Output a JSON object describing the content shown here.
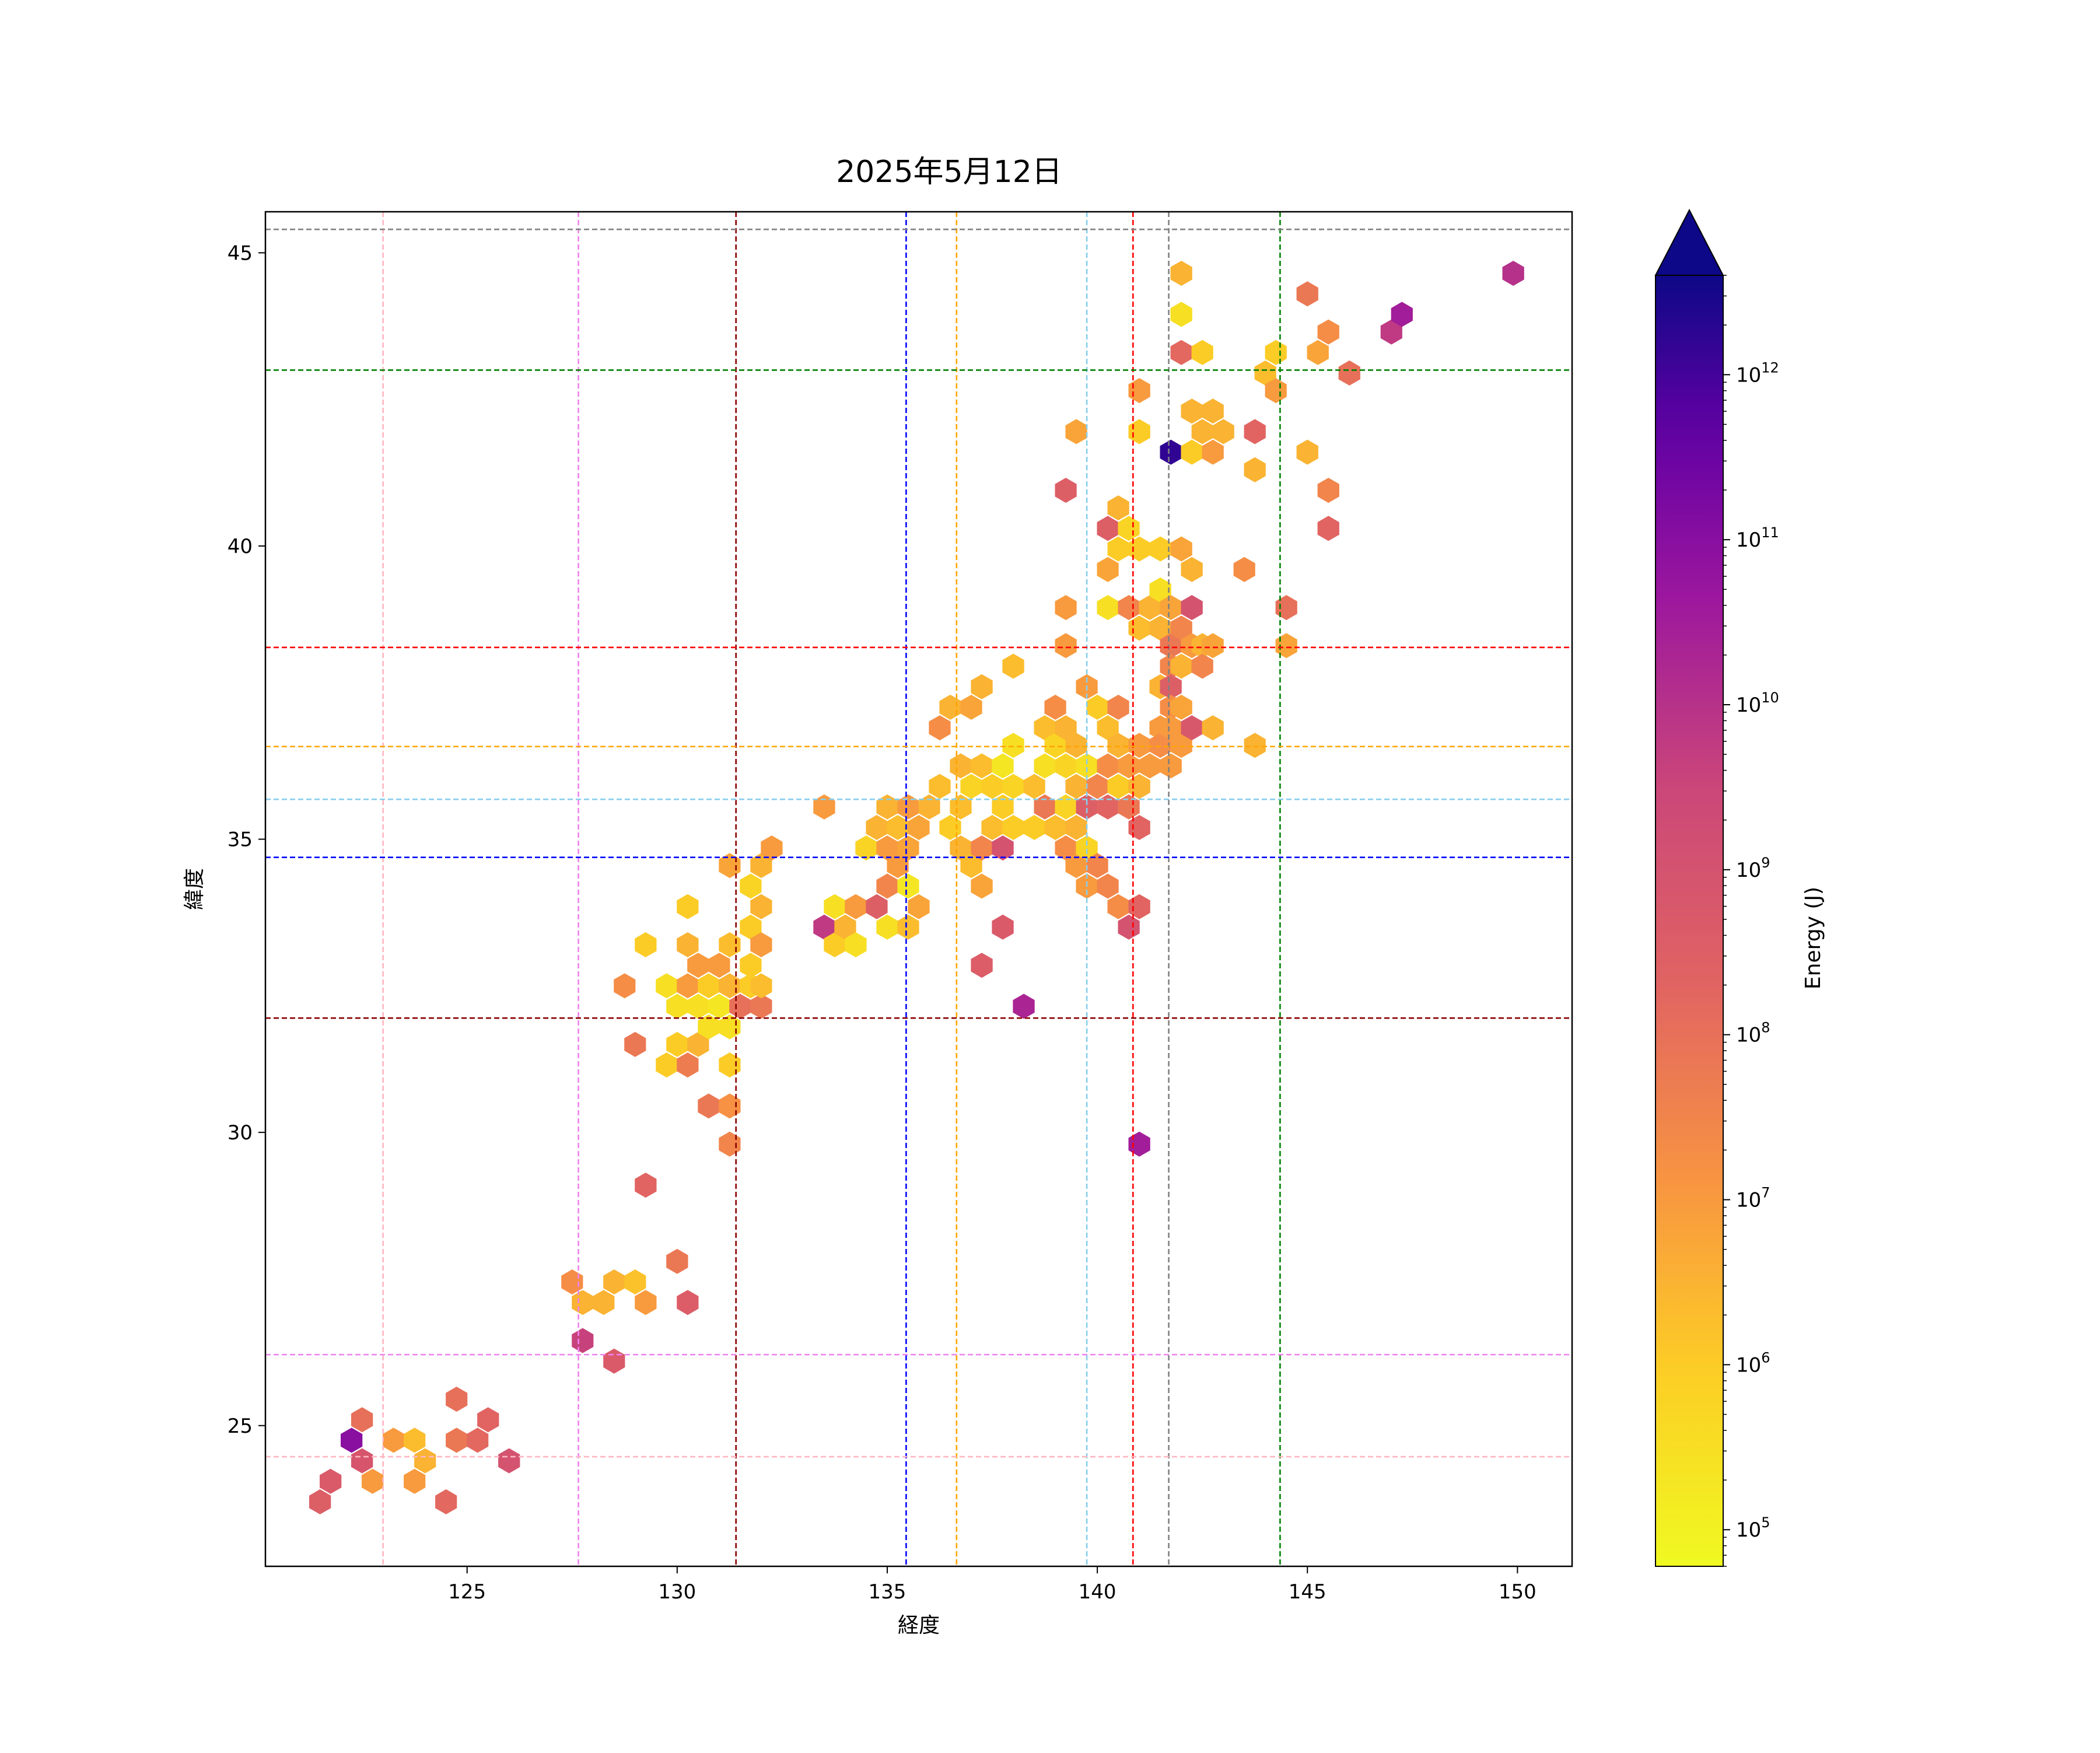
{
  "chart_data": {
    "type": "hexbin",
    "title": "2025年5月12日",
    "xlabel": "経度",
    "ylabel": "緯度",
    "xlim": [
      120.2,
      151.3
    ],
    "ylim": [
      22.6,
      45.7
    ],
    "xticks": [
      125,
      130,
      135,
      140,
      145,
      150
    ],
    "yticks": [
      25,
      30,
      35,
      40,
      45
    ],
    "grid": false,
    "colorbar": {
      "label": "Energy (J)",
      "scale": "log",
      "range": [
        60000,
        4000000000000
      ],
      "ticks": [
        {
          "value": 100000,
          "base": "10",
          "exp": "5"
        },
        {
          "value": 1000000,
          "base": "10",
          "exp": "6"
        },
        {
          "value": 10000000,
          "base": "10",
          "exp": "7"
        },
        {
          "value": 100000000,
          "base": "10",
          "exp": "8"
        },
        {
          "value": 1000000000,
          "base": "10",
          "exp": "9"
        },
        {
          "value": 10000000000,
          "base": "10",
          "exp": "10"
        },
        {
          "value": 100000000000,
          "base": "10",
          "exp": "11"
        },
        {
          "value": 1000000000000,
          "base": "10",
          "exp": "12"
        }
      ],
      "colormap": "plasma_r",
      "extend": "max"
    },
    "reference_lines": {
      "vertical": [
        {
          "x": 123.0,
          "color": "#ffb6c1"
        },
        {
          "x": 127.65,
          "color": "#ee82ee"
        },
        {
          "x": 131.4,
          "color": "#8b0000"
        },
        {
          "x": 135.45,
          "color": "#0000ff"
        },
        {
          "x": 136.65,
          "color": "#ffa500"
        },
        {
          "x": 139.75,
          "color": "#87ceeb"
        },
        {
          "x": 140.85,
          "color": "#ff0000"
        },
        {
          "x": 141.7,
          "color": "#808080"
        },
        {
          "x": 144.35,
          "color": "#008000"
        }
      ],
      "horizontal": [
        {
          "y": 45.4,
          "color": "#808080"
        },
        {
          "y": 43.0,
          "color": "#008000"
        },
        {
          "y": 38.27,
          "color": "#ff0000"
        },
        {
          "y": 36.58,
          "color": "#ffa500"
        },
        {
          "y": 35.68,
          "color": "#87ceeb"
        },
        {
          "y": 34.69,
          "color": "#0000ff"
        },
        {
          "y": 31.95,
          "color": "#8b0000"
        },
        {
          "y": 26.21,
          "color": "#ee82ee"
        },
        {
          "y": 24.47,
          "color": "#ffb6c1"
        }
      ]
    },
    "bins": [
      [
        121.5,
        23.7,
        8.5
      ],
      [
        121.75,
        24.05,
        8.7
      ],
      [
        122.25,
        24.75,
        11.0
      ],
      [
        122.5,
        24.4,
        8.9
      ],
      [
        122.5,
        25.1,
        8.0
      ],
      [
        122.75,
        24.05,
        7.0
      ],
      [
        123.25,
        24.75,
        7.0
      ],
      [
        123.75,
        24.75,
        6.3
      ],
      [
        123.75,
        24.05,
        7.0
      ],
      [
        124.0,
        24.4,
        6.5
      ],
      [
        124.5,
        23.7,
        8.2
      ],
      [
        124.75,
        24.75,
        7.8
      ],
      [
        124.75,
        25.45,
        8.0
      ],
      [
        125.25,
        24.75,
        8.2
      ],
      [
        125.5,
        25.1,
        8.3
      ],
      [
        126.0,
        24.4,
        9.0
      ],
      [
        127.5,
        27.45,
        7.3
      ],
      [
        127.75,
        27.1,
        6.5
      ],
      [
        127.75,
        26.45,
        9.6
      ],
      [
        128.25,
        27.1,
        6.5
      ],
      [
        128.5,
        27.45,
        6.5
      ],
      [
        128.5,
        26.1,
        8.7
      ],
      [
        129.0,
        27.45,
        6.2
      ],
      [
        129.25,
        27.1,
        7.0
      ],
      [
        129.25,
        29.1,
        8.3
      ],
      [
        130.0,
        27.8,
        7.8
      ],
      [
        130.25,
        27.1,
        8.6
      ],
      [
        128.75,
        32.5,
        7.3
      ],
      [
        129.0,
        31.5,
        7.8
      ],
      [
        129.25,
        33.2,
        6.0
      ],
      [
        129.75,
        32.5,
        5.5
      ],
      [
        129.75,
        31.15,
        6.0
      ],
      [
        130.0,
        32.15,
        5.5
      ],
      [
        130.0,
        31.5,
        6.0
      ],
      [
        130.25,
        33.85,
        6.0
      ],
      [
        130.25,
        33.2,
        6.5
      ],
      [
        130.25,
        32.5,
        7.0
      ],
      [
        130.25,
        31.15,
        7.7
      ],
      [
        130.5,
        32.85,
        7.0
      ],
      [
        130.5,
        32.15,
        5.5
      ],
      [
        130.5,
        31.5,
        6.5
      ],
      [
        130.75,
        32.5,
        6.0
      ],
      [
        130.75,
        31.8,
        5.5
      ],
      [
        130.75,
        30.45,
        7.8
      ],
      [
        131.0,
        32.85,
        7.0
      ],
      [
        131.0,
        32.15,
        5.3
      ],
      [
        131.25,
        33.2,
        6.3
      ],
      [
        131.25,
        32.5,
        6.5
      ],
      [
        131.25,
        31.8,
        5.5
      ],
      [
        131.25,
        31.15,
        6.0
      ],
      [
        131.25,
        30.45,
        7.2
      ],
      [
        131.25,
        29.8,
        7.5
      ],
      [
        131.25,
        34.55,
        6.8
      ],
      [
        131.5,
        32.15,
        8.0
      ],
      [
        131.75,
        32.5,
        6.0
      ],
      [
        131.75,
        32.85,
        6.0
      ],
      [
        131.75,
        33.5,
        6.0
      ],
      [
        131.75,
        34.2,
        5.8
      ],
      [
        132.0,
        32.15,
        7.8
      ],
      [
        132.0,
        33.85,
        6.5
      ],
      [
        132.0,
        34.55,
        6.5
      ],
      [
        132.0,
        33.2,
        7.0
      ],
      [
        132.0,
        32.5,
        6.3
      ],
      [
        132.25,
        34.85,
        7.0
      ],
      [
        133.5,
        35.55,
        7.0
      ],
      [
        133.5,
        33.5,
        9.8
      ],
      [
        133.75,
        33.85,
        5.5
      ],
      [
        133.75,
        33.2,
        6.0
      ],
      [
        134.0,
        33.5,
        6.5
      ],
      [
        134.25,
        33.85,
        7.0
      ],
      [
        134.25,
        33.2,
        5.5
      ],
      [
        134.5,
        34.85,
        5.8
      ],
      [
        134.75,
        35.2,
        6.5
      ],
      [
        134.75,
        33.85,
        8.5
      ],
      [
        135.0,
        35.55,
        6.5
      ],
      [
        135.0,
        34.85,
        7.0
      ],
      [
        135.0,
        34.2,
        7.5
      ],
      [
        135.0,
        33.5,
        5.5
      ],
      [
        135.25,
        35.2,
        6.3
      ],
      [
        135.25,
        34.55,
        7.0
      ],
      [
        135.5,
        35.55,
        7.0
      ],
      [
        135.5,
        34.85,
        6.8
      ],
      [
        135.5,
        34.2,
        5.3
      ],
      [
        135.5,
        33.5,
        6.3
      ],
      [
        135.75,
        35.2,
        6.8
      ],
      [
        135.75,
        33.85,
        6.8
      ],
      [
        136.0,
        35.55,
        6.5
      ],
      [
        136.25,
        35.9,
        6.3
      ],
      [
        136.25,
        36.9,
        7.3
      ],
      [
        136.5,
        37.25,
        6.5
      ],
      [
        136.5,
        35.2,
        6.0
      ],
      [
        136.75,
        36.25,
        6.5
      ],
      [
        136.75,
        35.55,
        6.3
      ],
      [
        136.75,
        34.85,
        6.5
      ],
      [
        137.0,
        37.25,
        6.8
      ],
      [
        137.0,
        35.9,
        5.8
      ],
      [
        137.0,
        34.55,
        6.3
      ],
      [
        137.25,
        37.6,
        6.5
      ],
      [
        137.25,
        36.25,
        6.3
      ],
      [
        137.25,
        34.85,
        7.5
      ],
      [
        137.25,
        34.2,
        6.8
      ],
      [
        137.25,
        32.85,
        8.6
      ],
      [
        137.5,
        35.9,
        6.0
      ],
      [
        137.5,
        35.2,
        6.3
      ],
      [
        137.75,
        36.25,
        5.3
      ],
      [
        137.75,
        35.55,
        6.0
      ],
      [
        137.75,
        34.85,
        9.0
      ],
      [
        137.75,
        33.5,
        8.7
      ],
      [
        138.0,
        37.95,
        6.3
      ],
      [
        138.0,
        36.6,
        5.5
      ],
      [
        138.0,
        35.9,
        5.8
      ],
      [
        138.0,
        35.2,
        6.0
      ],
      [
        138.25,
        32.15,
        10.3
      ],
      [
        138.5,
        35.9,
        6.3
      ],
      [
        138.5,
        35.2,
        6.0
      ],
      [
        138.75,
        36.9,
        6.3
      ],
      [
        138.75,
        36.25,
        5.5
      ],
      [
        138.75,
        35.55,
        7.8
      ],
      [
        139.0,
        37.25,
        7.3
      ],
      [
        139.0,
        36.6,
        5.8
      ],
      [
        139.0,
        35.2,
        6.3
      ],
      [
        139.25,
        38.3,
        7.0
      ],
      [
        139.25,
        38.95,
        7.0
      ],
      [
        139.25,
        36.9,
        6.5
      ],
      [
        139.25,
        36.25,
        5.8
      ],
      [
        139.25,
        35.55,
        5.8
      ],
      [
        139.25,
        34.85,
        7.3
      ],
      [
        139.25,
        40.95,
        8.5
      ],
      [
        139.5,
        41.95,
        6.8
      ],
      [
        139.5,
        36.6,
        6.5
      ],
      [
        139.5,
        35.9,
        6.5
      ],
      [
        139.5,
        35.2,
        6.5
      ],
      [
        139.5,
        34.55,
        7.0
      ],
      [
        139.75,
        37.6,
        7.0
      ],
      [
        139.75,
        36.25,
        5.5
      ],
      [
        139.75,
        35.55,
        8.5
      ],
      [
        139.75,
        34.85,
        5.8
      ],
      [
        139.75,
        34.2,
        7.0
      ],
      [
        140.0,
        37.25,
        6.0
      ],
      [
        140.0,
        35.9,
        7.5
      ],
      [
        140.0,
        34.55,
        7.5
      ],
      [
        140.25,
        40.3,
        8.5
      ],
      [
        140.25,
        39.6,
        6.8
      ],
      [
        140.25,
        38.95,
        5.5
      ],
      [
        140.25,
        36.9,
        6.3
      ],
      [
        140.25,
        36.25,
        7.3
      ],
      [
        140.25,
        35.55,
        8.3
      ],
      [
        140.25,
        34.2,
        7.5
      ],
      [
        140.5,
        40.65,
        6.5
      ],
      [
        140.5,
        39.95,
        6.0
      ],
      [
        140.5,
        37.25,
        7.5
      ],
      [
        140.5,
        36.6,
        6.5
      ],
      [
        140.5,
        35.9,
        6.0
      ],
      [
        140.5,
        33.85,
        7.3
      ],
      [
        140.75,
        40.3,
        5.8
      ],
      [
        140.75,
        38.95,
        7.5
      ],
      [
        140.75,
        36.25,
        7.0
      ],
      [
        140.75,
        35.55,
        7.8
      ],
      [
        140.75,
        33.5,
        9.0
      ],
      [
        141.0,
        42.65,
        7.0
      ],
      [
        141.0,
        41.95,
        6.0
      ],
      [
        141.0,
        39.95,
        6.0
      ],
      [
        141.0,
        38.6,
        6.3
      ],
      [
        141.0,
        36.6,
        7.0
      ],
      [
        141.0,
        35.9,
        6.5
      ],
      [
        141.0,
        35.2,
        8.3
      ],
      [
        141.0,
        33.85,
        8.3
      ],
      [
        141.0,
        29.8,
        10.5
      ],
      [
        141.25,
        38.95,
        6.5
      ],
      [
        141.25,
        36.25,
        7.0
      ],
      [
        141.5,
        39.95,
        6.0
      ],
      [
        141.5,
        39.25,
        5.5
      ],
      [
        141.5,
        38.6,
        6.5
      ],
      [
        141.5,
        37.6,
        6.5
      ],
      [
        141.5,
        36.9,
        7.0
      ],
      [
        141.5,
        36.6,
        7.3
      ],
      [
        141.75,
        41.6,
        12.2
      ],
      [
        141.75,
        38.95,
        6.8
      ],
      [
        141.75,
        38.3,
        7.8
      ],
      [
        141.75,
        37.95,
        7.5
      ],
      [
        141.75,
        37.6,
        8.5
      ],
      [
        141.75,
        37.25,
        7.3
      ],
      [
        141.75,
        36.9,
        7.0
      ],
      [
        141.75,
        36.25,
        7.0
      ],
      [
        142.0,
        44.65,
        6.5
      ],
      [
        142.0,
        43.95,
        5.5
      ],
      [
        142.0,
        43.3,
        8.2
      ],
      [
        142.0,
        39.95,
        6.8
      ],
      [
        142.0,
        38.6,
        7.5
      ],
      [
        142.0,
        37.95,
        6.5
      ],
      [
        142.0,
        37.25,
        6.8
      ],
      [
        142.0,
        36.6,
        7.0
      ],
      [
        142.25,
        42.3,
        6.5
      ],
      [
        142.25,
        41.6,
        6.0
      ],
      [
        142.25,
        39.6,
        6.5
      ],
      [
        142.25,
        38.95,
        9.0
      ],
      [
        142.25,
        38.3,
        7.0
      ],
      [
        142.25,
        36.9,
        8.8
      ],
      [
        142.5,
        43.3,
        6.0
      ],
      [
        142.5,
        41.95,
        6.5
      ],
      [
        142.5,
        38.3,
        6.5
      ],
      [
        142.5,
        37.95,
        7.5
      ],
      [
        142.75,
        42.3,
        6.5
      ],
      [
        142.75,
        41.6,
        7.0
      ],
      [
        142.75,
        38.3,
        6.8
      ],
      [
        142.75,
        36.9,
        6.5
      ],
      [
        143.0,
        41.95,
        6.5
      ],
      [
        143.5,
        39.6,
        7.3
      ],
      [
        143.75,
        41.95,
        8.3
      ],
      [
        143.75,
        41.3,
        6.5
      ],
      [
        143.75,
        36.6,
        6.5
      ],
      [
        144.0,
        42.95,
        6.3
      ],
      [
        144.25,
        43.3,
        6.0
      ],
      [
        144.25,
        42.65,
        7.0
      ],
      [
        144.5,
        38.95,
        8.0
      ],
      [
        144.5,
        38.3,
        6.8
      ],
      [
        145.0,
        44.3,
        7.8
      ],
      [
        145.0,
        41.6,
        6.5
      ],
      [
        145.25,
        43.3,
        6.8
      ],
      [
        145.5,
        43.65,
        7.3
      ],
      [
        145.5,
        40.95,
        7.5
      ],
      [
        145.5,
        40.3,
        8.3
      ],
      [
        146.0,
        42.95,
        8.0
      ],
      [
        147.0,
        43.65,
        9.8
      ],
      [
        147.25,
        43.95,
        10.5
      ],
      [
        149.9,
        44.65,
        10.0
      ]
    ]
  }
}
